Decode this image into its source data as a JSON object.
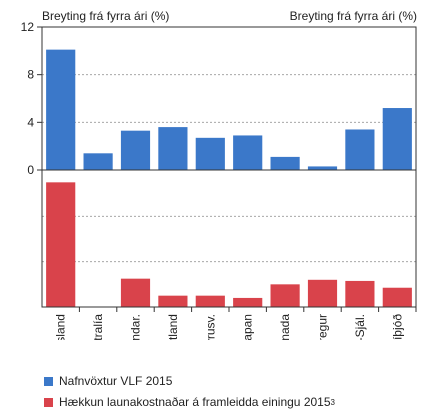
{
  "chart_data": [
    {
      "type": "bar",
      "left_axis_label": "Breyting frá fyrra ári (%)",
      "right_axis_label": "Breyting frá fyrra ári (%)",
      "ylim": [
        0,
        12
      ],
      "yticks": [
        0,
        4,
        8,
        12
      ],
      "grid": true,
      "categories": [
        "Ísland",
        "Ástralía",
        "Bandar.",
        "Bretland",
        "Evrusv.",
        "Japan",
        "Kanada",
        "Noregur",
        "Nýja-Sjál.",
        "Svíþjóð"
      ],
      "series": [
        {
          "name": "Nafnvöxtur VLF 2015",
          "color": "#3b78c9",
          "values": [
            10.1,
            1.4,
            3.3,
            3.6,
            2.7,
            2.9,
            1.1,
            0.3,
            3.4,
            5.2
          ]
        }
      ]
    },
    {
      "type": "bar",
      "ylim": [
        0,
        12
      ],
      "grid": true,
      "categories": [
        "Ísland",
        "Ástralía",
        "Bandar.",
        "Bretland",
        "Evrusv.",
        "Japan",
        "Kanada",
        "Noregur",
        "Nýja-Sjál.",
        "Svíþjóð"
      ],
      "series": [
        {
          "name": "Hækkun launakostnaðar á framleidda einingu 2015",
          "footnote": "3",
          "color": "#d9434b",
          "values": [
            11.0,
            0.0,
            2.5,
            1.0,
            1.0,
            0.8,
            2.0,
            2.4,
            2.3,
            1.7
          ]
        }
      ]
    }
  ]
}
